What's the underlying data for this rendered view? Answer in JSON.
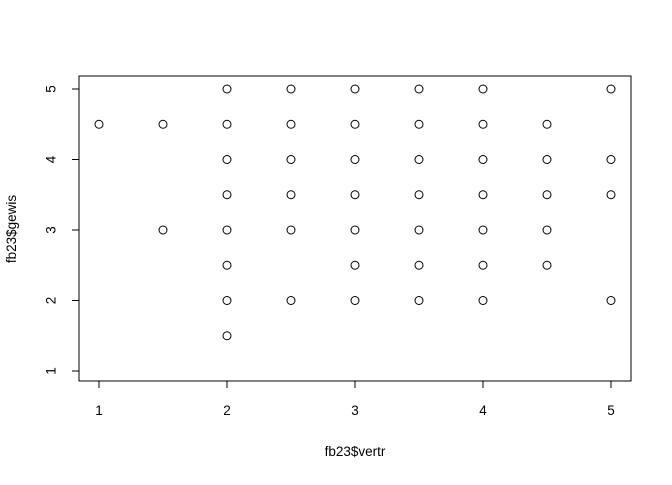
{
  "chart_data": {
    "type": "scatter",
    "title": "",
    "xlabel": "fb23$vertr",
    "ylabel": "fb23$gewis",
    "xlim": [
      1,
      5
    ],
    "ylim": [
      1,
      5
    ],
    "x_ticks": [
      1,
      2,
      3,
      4,
      5
    ],
    "y_ticks": [
      1,
      2,
      3,
      4,
      5
    ],
    "grid": false,
    "marker": "open-circle",
    "colors": {
      "point": "#000000",
      "axis": "#000000",
      "background": "#ffffff"
    },
    "points": [
      {
        "x": 1.0,
        "y": 4.5
      },
      {
        "x": 1.5,
        "y": 4.5
      },
      {
        "x": 1.5,
        "y": 3.0
      },
      {
        "x": 2.0,
        "y": 5.0
      },
      {
        "x": 2.0,
        "y": 4.5
      },
      {
        "x": 2.0,
        "y": 4.0
      },
      {
        "x": 2.0,
        "y": 3.5
      },
      {
        "x": 2.0,
        "y": 3.0
      },
      {
        "x": 2.0,
        "y": 2.5
      },
      {
        "x": 2.0,
        "y": 2.0
      },
      {
        "x": 2.0,
        "y": 1.5
      },
      {
        "x": 2.5,
        "y": 5.0
      },
      {
        "x": 2.5,
        "y": 4.5
      },
      {
        "x": 2.5,
        "y": 4.0
      },
      {
        "x": 2.5,
        "y": 3.5
      },
      {
        "x": 2.5,
        "y": 3.0
      },
      {
        "x": 2.5,
        "y": 2.0
      },
      {
        "x": 3.0,
        "y": 5.0
      },
      {
        "x": 3.0,
        "y": 4.5
      },
      {
        "x": 3.0,
        "y": 4.0
      },
      {
        "x": 3.0,
        "y": 3.5
      },
      {
        "x": 3.0,
        "y": 3.0
      },
      {
        "x": 3.0,
        "y": 2.5
      },
      {
        "x": 3.0,
        "y": 2.0
      },
      {
        "x": 3.5,
        "y": 5.0
      },
      {
        "x": 3.5,
        "y": 4.5
      },
      {
        "x": 3.5,
        "y": 4.0
      },
      {
        "x": 3.5,
        "y": 3.5
      },
      {
        "x": 3.5,
        "y": 3.0
      },
      {
        "x": 3.5,
        "y": 2.5
      },
      {
        "x": 3.5,
        "y": 2.0
      },
      {
        "x": 4.0,
        "y": 5.0
      },
      {
        "x": 4.0,
        "y": 4.5
      },
      {
        "x": 4.0,
        "y": 4.0
      },
      {
        "x": 4.0,
        "y": 3.5
      },
      {
        "x": 4.0,
        "y": 3.0
      },
      {
        "x": 4.0,
        "y": 2.5
      },
      {
        "x": 4.0,
        "y": 2.0
      },
      {
        "x": 4.5,
        "y": 4.5
      },
      {
        "x": 4.5,
        "y": 4.0
      },
      {
        "x": 4.5,
        "y": 3.5
      },
      {
        "x": 4.5,
        "y": 3.0
      },
      {
        "x": 4.5,
        "y": 2.5
      },
      {
        "x": 5.0,
        "y": 5.0
      },
      {
        "x": 5.0,
        "y": 4.0
      },
      {
        "x": 5.0,
        "y": 3.5
      },
      {
        "x": 5.0,
        "y": 2.0
      }
    ]
  }
}
